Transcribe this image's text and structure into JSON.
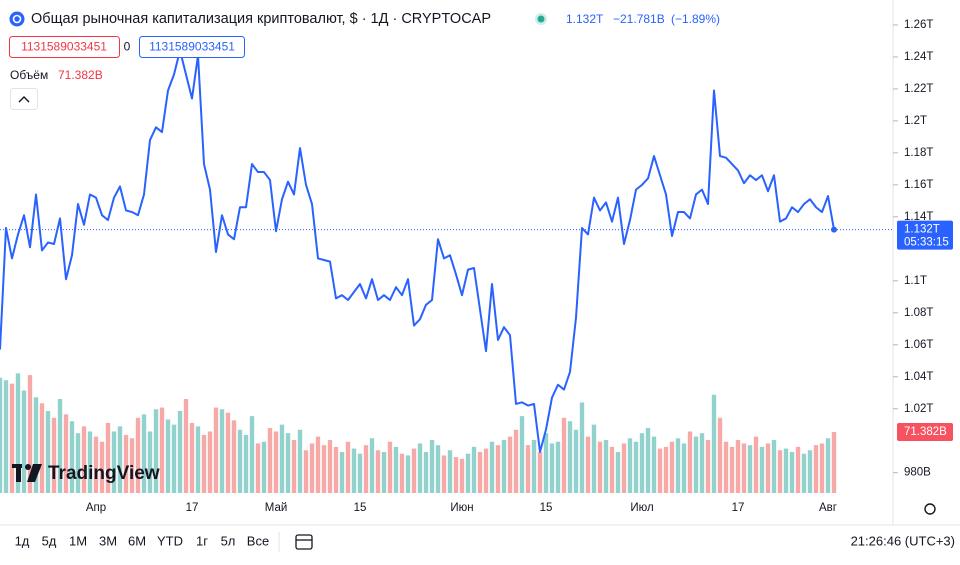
{
  "header": {
    "title": "Общая рыночная капитализация криптовалют, $ · 1Д · CRYPTOCAP",
    "price": "1.132T",
    "change": "−21.781B",
    "change_pct": "(−1.89%)",
    "field_a": "1131589033451",
    "field_mid": "0",
    "field_b": "1131589033451",
    "volume_name": "Объём",
    "price_time": "05:33:15",
    "logo": "TradingView"
  },
  "toolbar": {
    "ranges": [
      "1д",
      "5д",
      "1М",
      "3М",
      "6М",
      "YTD",
      "1г",
      "5л",
      "Все"
    ],
    "clock": "21:26:46 (UTC+3)"
  },
  "chart_data": {
    "type": "line",
    "color": "#2962ff",
    "categories": [
      null,
      null,
      null,
      null,
      null,
      null,
      null,
      null,
      null,
      null,
      null,
      null,
      null,
      null,
      null,
      null,
      "Апр",
      null,
      null,
      null,
      null,
      null,
      null,
      null,
      null,
      null,
      null,
      null,
      null,
      null,
      null,
      null,
      "17",
      null,
      null,
      null,
      null,
      null,
      null,
      null,
      null,
      null,
      null,
      null,
      null,
      null,
      "Май",
      null,
      null,
      null,
      null,
      null,
      null,
      null,
      null,
      null,
      null,
      null,
      null,
      null,
      "15",
      null,
      null,
      null,
      null,
      null,
      null,
      null,
      null,
      null,
      null,
      null,
      null,
      null,
      null,
      null,
      null,
      "Июн",
      null,
      null,
      null,
      null,
      null,
      null,
      null,
      null,
      null,
      null,
      null,
      null,
      null,
      "15",
      null,
      null,
      null,
      null,
      null,
      null,
      null,
      null,
      null,
      null,
      null,
      null,
      null,
      null,
      null,
      "Июл",
      null,
      null,
      null,
      null,
      null,
      null,
      null,
      null,
      null,
      null,
      null,
      null,
      null,
      null,
      null,
      "17",
      null,
      null,
      null,
      null,
      null,
      null,
      null,
      null,
      null,
      null,
      null,
      null,
      null,
      null,
      "Авг",
      null
    ],
    "values": [
      1.057,
      1.133,
      1.114,
      1.129,
      1.141,
      1.121,
      1.154,
      1.119,
      1.124,
      1.123,
      1.139,
      1.101,
      1.116,
      1.148,
      1.135,
      1.154,
      1.152,
      1.141,
      1.138,
      1.152,
      1.159,
      1.144,
      1.143,
      1.141,
      1.154,
      1.188,
      1.196,
      1.193,
      1.219,
      1.229,
      1.244,
      1.229,
      1.214,
      1.241,
      1.173,
      1.157,
      1.118,
      1.141,
      1.129,
      1.126,
      1.146,
      1.146,
      1.173,
      1.168,
      1.168,
      1.163,
      1.131,
      1.151,
      1.162,
      1.154,
      1.183,
      1.16,
      1.148,
      1.114,
      1.113,
      1.112,
      1.089,
      1.091,
      1.088,
      1.093,
      1.098,
      1.089,
      1.101,
      1.088,
      1.091,
      1.088,
      1.096,
      1.091,
      1.101,
      1.072,
      1.076,
      1.085,
      1.088,
      1.126,
      1.114,
      1.116,
      1.104,
      1.091,
      1.107,
      1.108,
      1.082,
      1.056,
      1.098,
      1.063,
      1.071,
      1.066,
      1.023,
      1.024,
      1.022,
      1.023,
      0.993,
      1.007,
      1.027,
      1.035,
      1.032,
      1.043,
      1.077,
      1.133,
      1.129,
      1.152,
      1.144,
      1.149,
      1.137,
      1.152,
      1.123,
      1.138,
      1.157,
      1.16,
      1.164,
      1.178,
      1.166,
      1.154,
      1.128,
      1.143,
      1.143,
      1.139,
      1.154,
      1.157,
      1.148,
      1.219,
      1.178,
      1.177,
      1.173,
      1.169,
      1.161,
      1.166,
      1.163,
      1.166,
      1.156,
      1.166,
      1.137,
      1.139,
      1.146,
      1.143,
      1.148,
      1.151,
      1.146,
      1.143,
      1.153,
      1.132
    ],
    "ylim": [
      0.9673,
      1.2756
    ],
    "yticks": [
      {
        "value": 1.26,
        "label": "1.26T"
      },
      {
        "value": 1.24,
        "label": "1.24T"
      },
      {
        "value": 1.22,
        "label": "1.22T"
      },
      {
        "value": 1.2,
        "label": "1.2T"
      },
      {
        "value": 1.18,
        "label": "1.18T"
      },
      {
        "value": 1.16,
        "label": "1.16T"
      },
      {
        "value": 1.14,
        "label": "1.14T"
      },
      {
        "value": 1.1,
        "label": "1.1T"
      },
      {
        "value": 1.08,
        "label": "1.08T"
      },
      {
        "value": 1.06,
        "label": "1.06T"
      },
      {
        "value": 1.04,
        "label": "1.04T"
      },
      {
        "value": 1.02,
        "label": "1.02T"
      },
      {
        "value": 0.98,
        "label": "980B"
      }
    ],
    "grid": false,
    "volume": {
      "up_color": "#92d2cc",
      "down_color": "#f7a9a7",
      "ylim": [
        0,
        577
      ],
      "last_label": "71.382B",
      "values": [
        135,
        132,
        128,
        140,
        120,
        138,
        112,
        105,
        96,
        88,
        110,
        92,
        84,
        70,
        78,
        72,
        66,
        60,
        82,
        72,
        78,
        68,
        64,
        88,
        92,
        72,
        98,
        100,
        86,
        80,
        96,
        110,
        82,
        78,
        68,
        72,
        100,
        98,
        94,
        85,
        74,
        68,
        90,
        58,
        60,
        76,
        72,
        80,
        70,
        62,
        74,
        50,
        58,
        66,
        56,
        62,
        54,
        48,
        60,
        52,
        46,
        56,
        64,
        50,
        48,
        60,
        54,
        46,
        44,
        52,
        58,
        48,
        62,
        56,
        44,
        50,
        42,
        40,
        46,
        54,
        48,
        52,
        60,
        56,
        62,
        66,
        74,
        90,
        56,
        62,
        48,
        70,
        58,
        60,
        88,
        84,
        74,
        106,
        66,
        80,
        60,
        62,
        54,
        48,
        58,
        64,
        60,
        70,
        76,
        66,
        52,
        54,
        60,
        64,
        58,
        72,
        66,
        70,
        62,
        115,
        88,
        60,
        54,
        62,
        58,
        56,
        66,
        54,
        58,
        62,
        50,
        52,
        48,
        54,
        46,
        50,
        56,
        58,
        64,
        71.382
      ]
    }
  }
}
